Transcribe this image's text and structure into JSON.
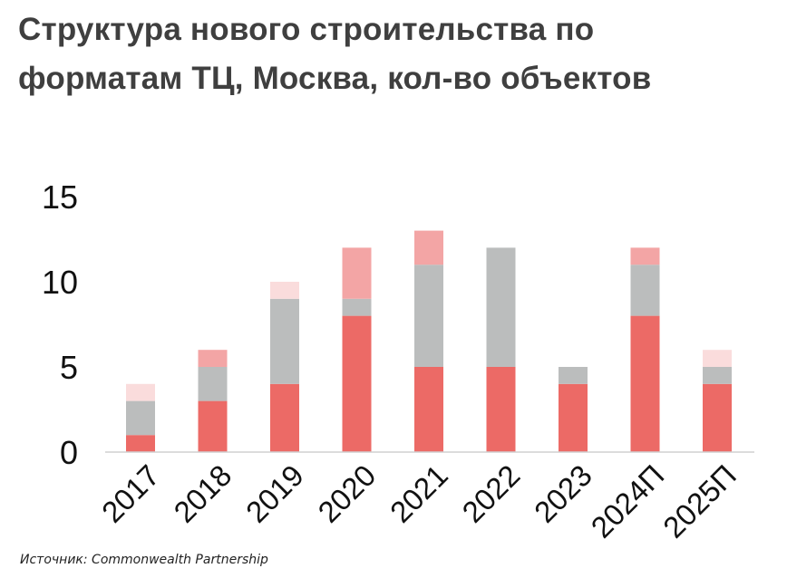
{
  "title_line1": "Структура нового строительства по",
  "title_line2": "форматам ТЦ, Москва, кол-во объектов",
  "source": "Источник: Commonwealth Partnership",
  "chart_data": {
    "type": "bar",
    "stacked": true,
    "categories": [
      "2017",
      "2018",
      "2019",
      "2020",
      "2021",
      "2022",
      "2023",
      "2024П",
      "2025П"
    ],
    "series": [
      {
        "color": "#ec6a66",
        "values": [
          1,
          3,
          4,
          8,
          5,
          5,
          4,
          8,
          4
        ]
      },
      {
        "color": "#bbbdbd",
        "values": [
          2,
          2,
          5,
          1,
          6,
          7,
          1,
          3,
          1
        ]
      },
      {
        "color": "#f3a5a5",
        "values": [
          0,
          1,
          0,
          3,
          2,
          0,
          0,
          1,
          0
        ]
      },
      {
        "color": "#fadcdc",
        "values": [
          1,
          0,
          1,
          0,
          0,
          0,
          0,
          0,
          1
        ]
      }
    ],
    "yticks": [
      0,
      5,
      10,
      15
    ],
    "ylim": [
      0,
      15
    ],
    "grid": false,
    "legend": "none"
  }
}
